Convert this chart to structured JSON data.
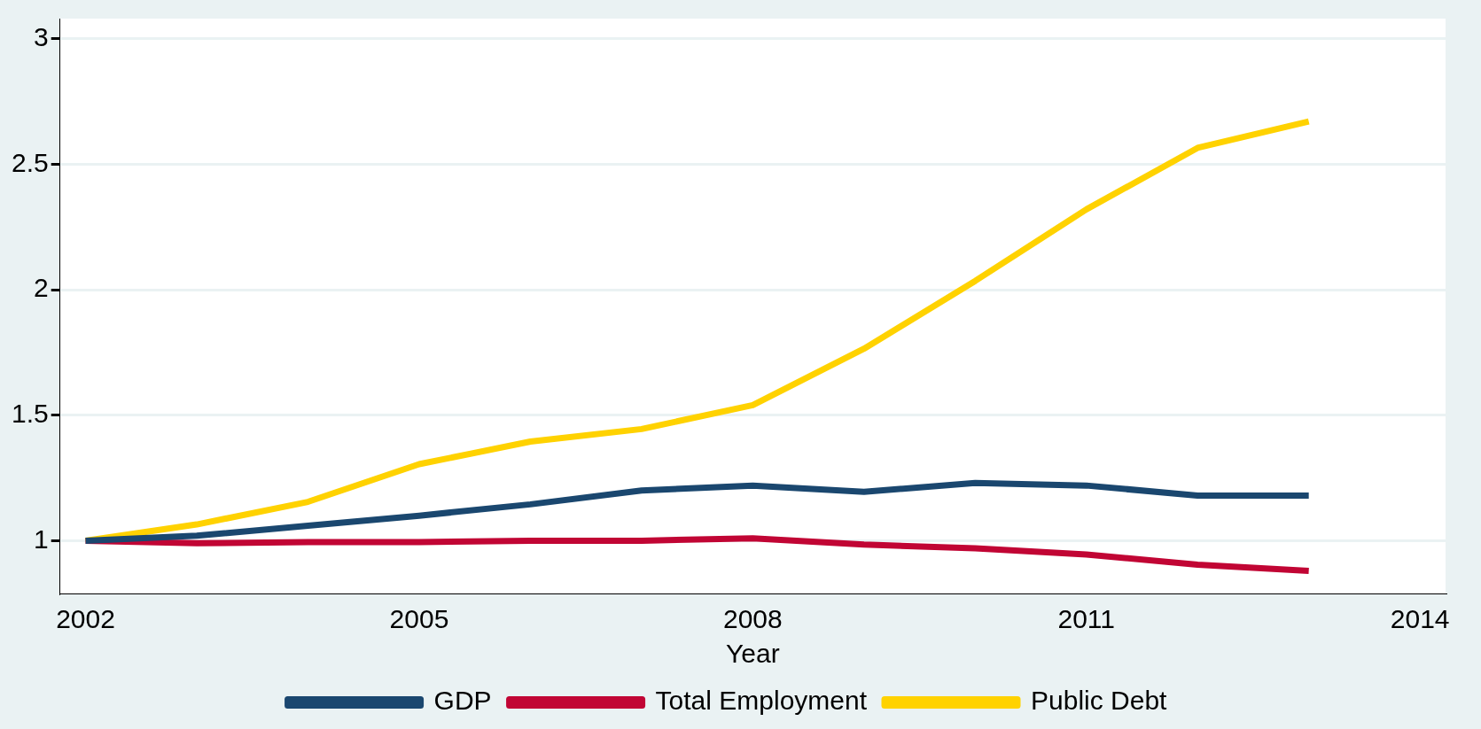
{
  "chart_data": {
    "type": "line",
    "xlabel": "Year",
    "x": [
      2002,
      2003,
      2004,
      2005,
      2006,
      2007,
      2008,
      2009,
      2010,
      2011,
      2012,
      2013
    ],
    "series": [
      {
        "name": "GDP",
        "color": "#1a476f",
        "values": [
          1.0,
          1.02,
          1.06,
          1.1,
          1.145,
          1.2,
          1.22,
          1.195,
          1.23,
          1.22,
          1.18,
          1.18
        ]
      },
      {
        "name": "Total Employment",
        "color": "#c10534",
        "values": [
          1.0,
          0.99,
          0.995,
          0.995,
          1.0,
          1.0,
          1.01,
          0.985,
          0.97,
          0.945,
          0.905,
          0.88
        ]
      },
      {
        "name": "Public Debt",
        "color": "#ffd200",
        "values": [
          1.0,
          1.065,
          1.155,
          1.305,
          1.395,
          1.445,
          1.54,
          1.765,
          2.035,
          2.32,
          2.565,
          2.67
        ]
      }
    ],
    "xlim": [
      2001.77,
      2014.23
    ],
    "xticks": [
      2002,
      2005,
      2008,
      2011,
      2014
    ],
    "ylim": [
      0.79,
      3.08
    ],
    "yticks": [
      1,
      1.5,
      2,
      2.5,
      3
    ],
    "grid": "y",
    "legend": "bottom",
    "marker": "none",
    "line_style": "solid"
  }
}
